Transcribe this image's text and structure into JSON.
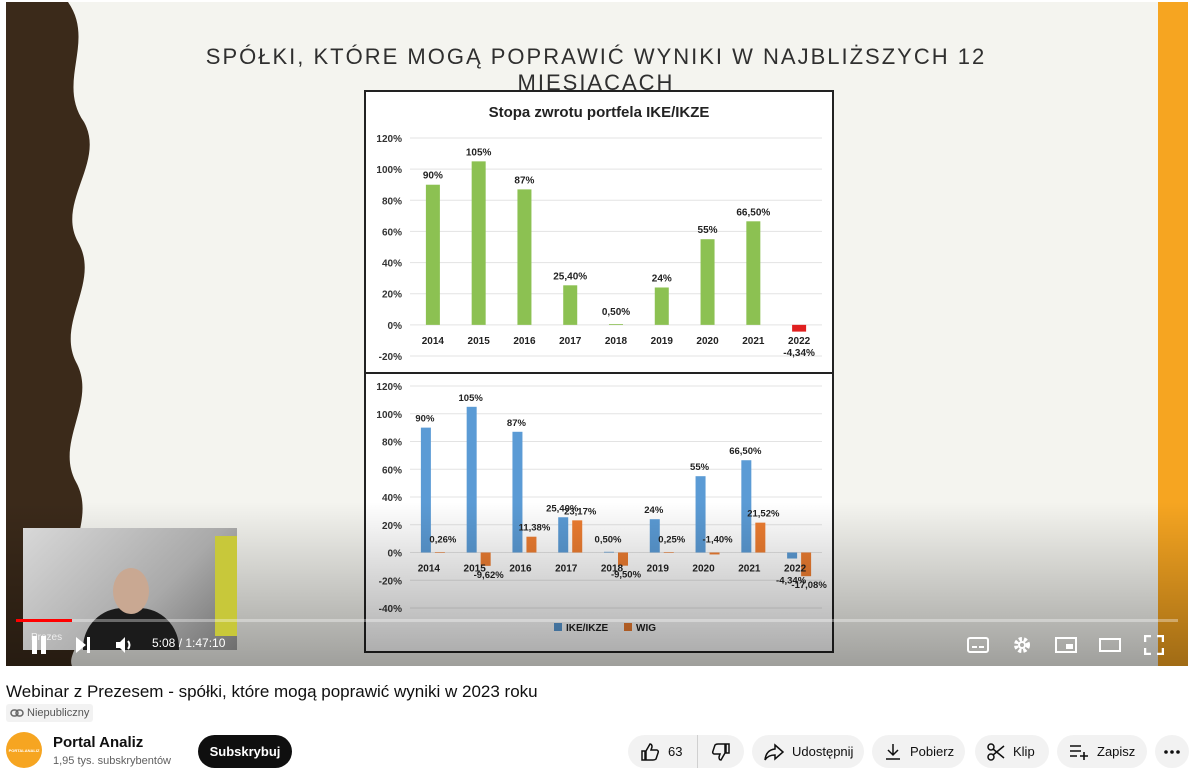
{
  "slide": {
    "title": "SPÓŁKI, KTÓRE MOGĄ POPRAWIĆ WYNIKI W NAJBLIŻSZYCH 12 MIESIĄCACH",
    "colors": {
      "accent_right": "#f6a521",
      "wave_dark": "#3b2a1a",
      "ike": "#5b9bd5",
      "wig": "#ed7d31",
      "green": "#8cc152",
      "red": "#e02020"
    }
  },
  "chart_data": [
    {
      "type": "bar",
      "title": "Stopa zwrotu portfela IKE/IKZE",
      "categories": [
        "2014",
        "2015",
        "2016",
        "2017",
        "2018",
        "2019",
        "2020",
        "2021",
        "2022"
      ],
      "values": [
        90,
        105,
        87,
        25.4,
        0.5,
        24,
        55,
        66.5,
        -4.34
      ],
      "value_labels": [
        "90%",
        "105%",
        "87%",
        "25,40%",
        "0,50%",
        "24%",
        "55%",
        "66,50%",
        "-4,34%"
      ],
      "ylim": [
        -20,
        120
      ],
      "yticks": [
        "120%",
        "100%",
        "80%",
        "60%",
        "40%",
        "20%",
        "0%",
        "-20%"
      ],
      "ytick_values": [
        120,
        100,
        80,
        60,
        40,
        20,
        0,
        -20
      ],
      "grid": true
    },
    {
      "type": "bar",
      "title": "",
      "categories": [
        "2014",
        "2015",
        "2016",
        "2017",
        "2018",
        "2019",
        "2020",
        "2021",
        "2022"
      ],
      "series": [
        {
          "name": "IKE/IKZE",
          "values": [
            90,
            105,
            87,
            25.4,
            0.5,
            24,
            55,
            66.5,
            -4.34
          ],
          "labels": [
            "90%",
            "105%",
            "87%",
            "25,40%",
            "0,50%",
            "24%",
            "55%",
            "66,50%",
            "-4,34%"
          ]
        },
        {
          "name": "WIG",
          "values": [
            0.26,
            -9.62,
            11.38,
            23.17,
            -9.5,
            0.25,
            -1.4,
            21.52,
            -17.08
          ],
          "labels": [
            "0,26%",
            "-9,62%",
            "11,38%",
            "23,17%",
            "-9,50%",
            "0,25%",
            "-1,40%",
            "21,52%",
            "-17,08%"
          ]
        }
      ],
      "ylim": [
        -40,
        120
      ],
      "yticks": [
        "120%",
        "100%",
        "80%",
        "60%",
        "40%",
        "20%",
        "0%",
        "-20%",
        "-40%"
      ],
      "ytick_values": [
        120,
        100,
        80,
        60,
        40,
        20,
        0,
        -20,
        -40
      ],
      "legend": "bottom-center",
      "grid": true
    }
  ],
  "webcam": {
    "label": "Prezes"
  },
  "player": {
    "time": "5:08 / 1:47:10",
    "progress": 0.048
  },
  "video": {
    "title": "Webinar z Prezesem - spółki, które mogą poprawić wyniki w 2023 roku",
    "privacy": "Niepubliczny"
  },
  "channel": {
    "name": "Portal Analiz",
    "subscribers": "1,95 tys. subskrybentów",
    "avatar_text": "PORTALANALIZ",
    "subscribe_label": "Subskrybuj"
  },
  "actions": {
    "likes": "63",
    "share": "Udostępnij",
    "download": "Pobierz",
    "clip": "Klip",
    "save": "Zapisz"
  }
}
